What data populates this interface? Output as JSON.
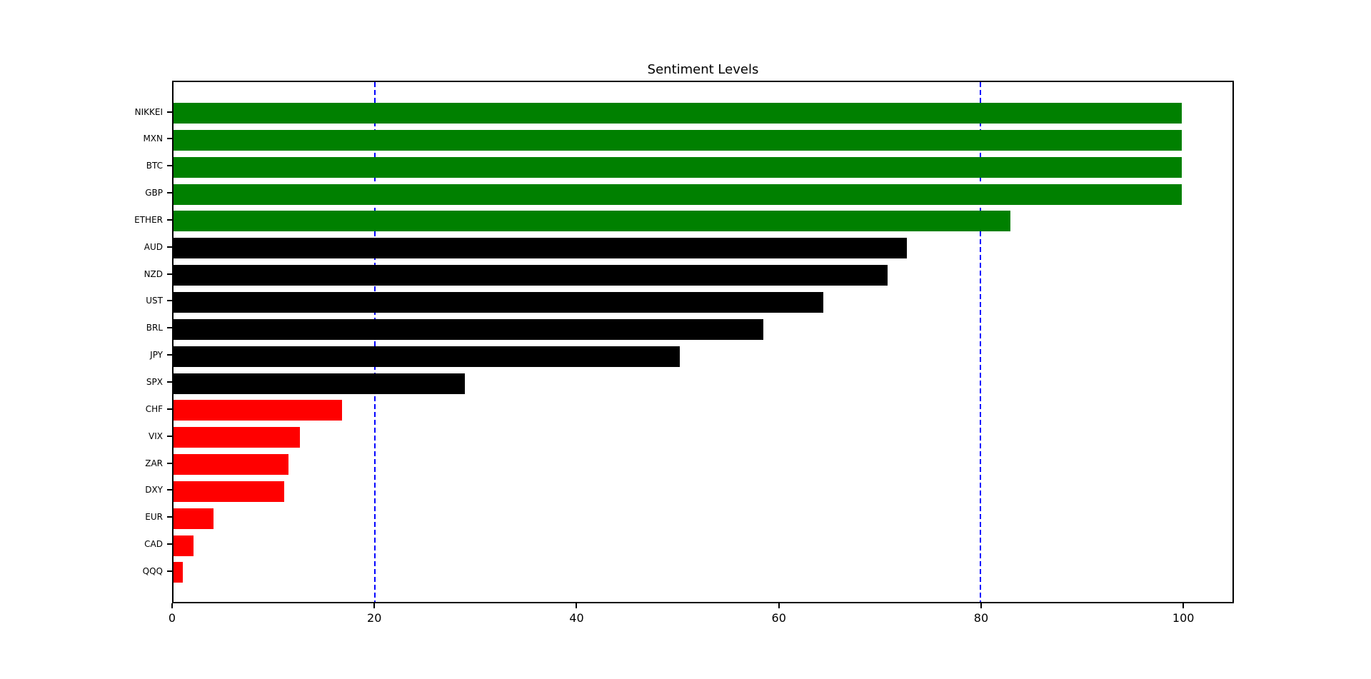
{
  "window": {
    "background": "#ffffff"
  },
  "chart_data": {
    "type": "bar",
    "orientation": "horizontal",
    "title": "Sentiment Levels",
    "categories": [
      "NIKKEI",
      "MXN",
      "BTC",
      "GBP",
      "ETHER",
      "AUD",
      "NZD",
      "UST",
      "BRL",
      "JPY",
      "SPX",
      "CHF",
      "VIX",
      "ZAR",
      "DXY",
      "EUR",
      "CAD",
      "QQQ"
    ],
    "values": [
      100,
      100,
      100,
      100,
      83,
      72.7,
      70.8,
      64.4,
      58.5,
      50.2,
      28.9,
      16.7,
      12.5,
      11.4,
      11,
      4,
      2,
      0.9
    ],
    "bar_colors": [
      "#008000",
      "#008000",
      "#008000",
      "#008000",
      "#008000",
      "#000000",
      "#000000",
      "#000000",
      "#000000",
      "#000000",
      "#000000",
      "#ff0000",
      "#ff0000",
      "#ff0000",
      "#ff0000",
      "#ff0000",
      "#ff0000",
      "#ff0000"
    ],
    "color_rule": {
      "green_above": 80,
      "red_below": 20,
      "green": "#008000",
      "neutral": "#000000",
      "red": "#ff0000"
    },
    "xlabel": "",
    "ylabel": "",
    "xlim": [
      0,
      105
    ],
    "x_ticks": [
      0,
      20,
      40,
      60,
      80,
      100
    ],
    "reference_lines": [
      {
        "x": 20,
        "color": "#0000ff",
        "style": "dashed"
      },
      {
        "x": 80,
        "color": "#0000ff",
        "style": "dashed"
      }
    ],
    "grid": false,
    "legend": null,
    "axis_color": "#000000"
  }
}
